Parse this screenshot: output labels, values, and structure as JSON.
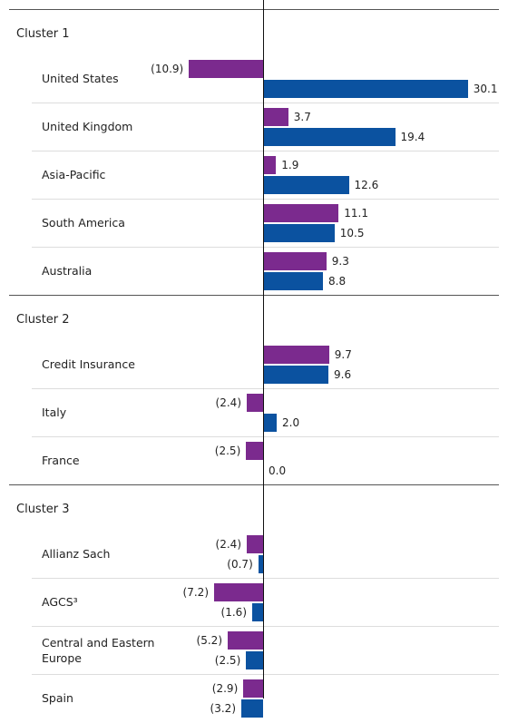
{
  "chart_data": {
    "type": "bar",
    "orientation": "horizontal",
    "xlim": [
      -12,
      32
    ],
    "groups": [
      {
        "title": "Cluster 1",
        "categories": [
          "United States",
          "United Kingdom",
          "Asia-Pacific",
          "South America",
          "Australia"
        ],
        "series": [
          {
            "color": "#7b2a8e",
            "values": [
              -10.9,
              3.7,
              1.9,
              11.1,
              9.3
            ],
            "value_labels": [
              "(10.9)",
              "3.7",
              "1.9",
              "11.1",
              "9.3"
            ]
          },
          {
            "color": "#0b52a0",
            "values": [
              30.1,
              19.4,
              12.6,
              10.5,
              8.8
            ],
            "value_labels": [
              "30.1",
              "19.4",
              "12.6",
              "10.5",
              "8.8"
            ]
          }
        ]
      },
      {
        "title": "Cluster 2",
        "categories": [
          "Credit Insurance",
          "Italy",
          "France"
        ],
        "series": [
          {
            "color": "#7b2a8e",
            "values": [
              9.7,
              -2.4,
              -2.5
            ],
            "value_labels": [
              "9.7",
              "(2.4)",
              "(2.5)"
            ]
          },
          {
            "color": "#0b52a0",
            "values": [
              9.6,
              2.0,
              0.0
            ],
            "value_labels": [
              "9.6",
              "2.0",
              "0.0"
            ]
          }
        ]
      },
      {
        "title": "Cluster 3",
        "categories": [
          "Allianz Sach",
          "AGCS³",
          "Central and Eastern Europe",
          "Spain"
        ],
        "series": [
          {
            "color": "#7b2a8e",
            "values": [
              -2.4,
              -7.2,
              -5.2,
              -2.9
            ],
            "value_labels": [
              "(2.4)",
              "(7.2)",
              "(5.2)",
              "(2.9)"
            ]
          },
          {
            "color": "#0b52a0",
            "values": [
              -0.7,
              -1.6,
              -2.5,
              -3.2
            ],
            "value_labels": [
              "(0.7)",
              "(1.6)",
              "(2.5)",
              "(3.2)"
            ]
          }
        ]
      }
    ]
  }
}
